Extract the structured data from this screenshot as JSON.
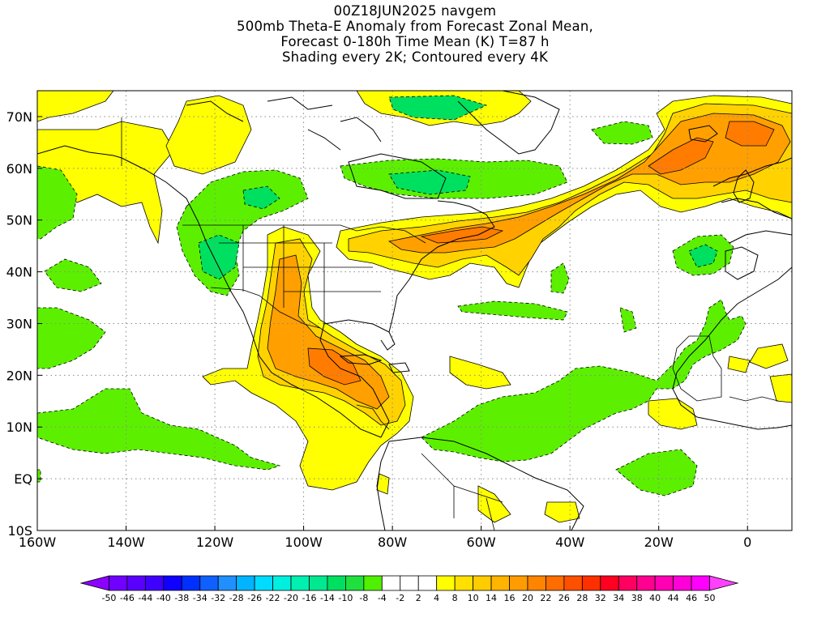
{
  "title_lines": [
    "00Z18JUN2025 navgem",
    "500mb Theta-E Anomaly from Forecast Zonal Mean,",
    "Forecast 0-180h Time Mean (K) T=87 h",
    "Shading every 2K; Contoured every 4K"
  ],
  "map": {
    "lon_range": [
      -160,
      10
    ],
    "lat_range": [
      -10,
      75
    ],
    "x_tick_labels": [
      "160W",
      "140W",
      "120W",
      "100W",
      "80W",
      "60W",
      "40W",
      "20W",
      "0"
    ],
    "x_tick_values": [
      -160,
      -140,
      -120,
      -100,
      -80,
      -60,
      -40,
      -20,
      0
    ],
    "y_tick_labels": [
      "10S",
      "EQ",
      "10N",
      "20N",
      "30N",
      "40N",
      "50N",
      "60N",
      "70N"
    ],
    "y_tick_values": [
      -10,
      0,
      10,
      20,
      30,
      40,
      50,
      60,
      70
    ],
    "grid": "dotted"
  },
  "colorbar": {
    "labels": [
      "-50",
      "-46",
      "-44",
      "-40",
      "-38",
      "-34",
      "-32",
      "-28",
      "-26",
      "-22",
      "-20",
      "-16",
      "-14",
      "-10",
      "-8",
      "-4",
      "-2",
      "2",
      "4",
      "8",
      "10",
      "14",
      "16",
      "20",
      "22",
      "26",
      "28",
      "32",
      "34",
      "38",
      "40",
      "44",
      "46",
      "50"
    ],
    "colors": [
      "#8c00ff",
      "#7000ff",
      "#5a00ff",
      "#4000ff",
      "#1000ff",
      "#0030ff",
      "#1060ff",
      "#2090ff",
      "#00b4ff",
      "#00dcff",
      "#00f0e0",
      "#00f0b0",
      "#00e890",
      "#00e060",
      "#20e040",
      "#50f000",
      "#ffffff",
      "#ffffff",
      "#ffffff",
      "#ffff00",
      "#ffe000",
      "#ffcc00",
      "#ffb400",
      "#ff9c00",
      "#ff8400",
      "#ff6c00",
      "#ff5000",
      "#ff3000",
      "#ff0020",
      "#ff0060",
      "#ff0090",
      "#ff00b4",
      "#ff00d8",
      "#ff00ff",
      "#ff40ff"
    ]
  },
  "shading_colors": {
    "pos_light": "#ffff00",
    "pos_mid": "#ffd200",
    "pos_strong": "#ffa000",
    "pos_max": "#ff7c00",
    "neg_light": "#5cf000",
    "neg_mid": "#00e060",
    "neg_strong": "#00f0b0"
  }
}
